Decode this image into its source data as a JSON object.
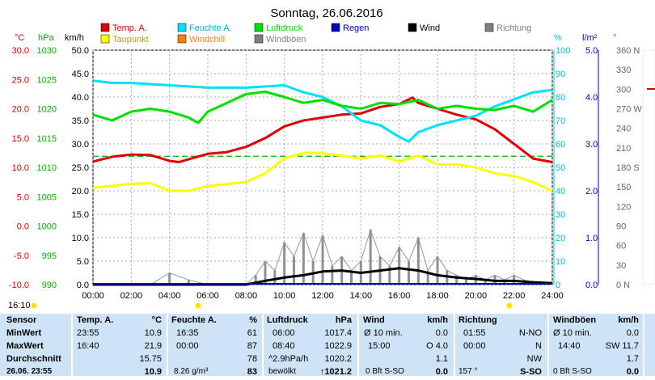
{
  "chart_data": {
    "type": "line",
    "title": "Sonntag, 26.06.2016",
    "legend": [
      {
        "label": "Temp. A.",
        "color": "#e00000"
      },
      {
        "label": "Feuchte A.",
        "color": "#00e0ff"
      },
      {
        "label": "Luftdruck",
        "color": "#00e000"
      },
      {
        "label": "Regen",
        "color": "#0000c0"
      },
      {
        "label": "Wind",
        "color": "#000000"
      },
      {
        "label": "Richtung",
        "color": "#808080"
      },
      {
        "label": "Taupunkt",
        "color": "#ffff00"
      },
      {
        "label": "Windchill",
        "color": "#ff8000"
      },
      {
        "label": "Windböen",
        "color": "#808080"
      }
    ],
    "axis_units": {
      "temp": "°C",
      "pressure": "hPa",
      "wind": "km/h",
      "humidity": "%",
      "rain": "l/m²",
      "direction": "°"
    },
    "axes": {
      "temp": {
        "ylim": [
          -10,
          30
        ],
        "ticks": [
          "30.0",
          "25.0",
          "20.0",
          "15.0",
          "10.0",
          "5.0",
          "0.0",
          "-5.0",
          "-10.0"
        ]
      },
      "pressure": {
        "ylim": [
          990,
          1030
        ],
        "ticks": [
          "1030",
          "1025",
          "1020",
          "1015",
          "1010",
          "1005",
          "1000",
          "995",
          "990"
        ]
      },
      "wind": {
        "ylim": [
          0,
          50
        ],
        "ticks": [
          "50.0",
          "45.0",
          "40.0",
          "35.0",
          "30.0",
          "25.0",
          "20.0",
          "15.0",
          "10.0",
          "5.0",
          "0.0"
        ]
      },
      "humidity": {
        "ylim": [
          0,
          100
        ],
        "ticks": [
          "100",
          "90",
          "80",
          "70",
          "60",
          "50",
          "40",
          "30",
          "20",
          "10",
          "0"
        ]
      },
      "rain": {
        "ylim": [
          0,
          5
        ],
        "ticks": [
          "5.0",
          "4.0",
          "3.0",
          "2.0",
          "1.0",
          "0.0"
        ]
      },
      "direction": {
        "ylim": [
          0,
          360
        ],
        "ticks": [
          "360 N",
          "330",
          "300",
          "270 W",
          "240",
          "210",
          "180 S",
          "150",
          "120",
          "90",
          "60",
          "30",
          "0 N"
        ]
      }
    },
    "x_ticks": [
      "00:00",
      "02:00",
      "04:00",
      "06:00",
      "08:00",
      "10:00",
      "12:00",
      "14:00",
      "16:00",
      "18:00",
      "20:00",
      "22:00",
      "24:00"
    ],
    "x_hours": [
      0,
      24
    ],
    "series": [
      {
        "name": "Temp. A.",
        "axis": "temp",
        "color": "#e00000",
        "width": 3,
        "x": [
          0,
          1,
          2,
          3,
          4,
          4.5,
          5,
          6,
          7,
          8,
          9,
          10,
          11,
          12,
          13,
          14,
          15,
          16,
          16.7,
          17,
          18,
          19,
          20,
          21,
          22,
          23,
          24
        ],
        "y": [
          11.0,
          11.8,
          12.2,
          12.1,
          11.1,
          10.9,
          11.4,
          12.3,
          12.6,
          13.5,
          15.0,
          17.0,
          18.0,
          18.5,
          19.0,
          19.2,
          20.3,
          20.8,
          21.9,
          21.0,
          20.0,
          19.0,
          18.2,
          16.5,
          14.0,
          11.5,
          10.9
        ]
      },
      {
        "name": "Feuchte A.",
        "axis": "humidity",
        "color": "#00e0ff",
        "width": 3,
        "x": [
          0,
          1,
          2,
          4,
          6,
          8,
          10,
          11,
          12,
          13,
          14,
          15,
          16,
          16.5,
          17,
          18,
          19,
          20,
          21,
          22,
          23,
          24
        ],
        "y": [
          87,
          86,
          86,
          85,
          84,
          84,
          85,
          82,
          80,
          76,
          70,
          68,
          63,
          61,
          65,
          68,
          70,
          72,
          76,
          79,
          82,
          83
        ]
      },
      {
        "name": "Luftdruck",
        "axis": "pressure",
        "color": "#00e000",
        "width": 3,
        "x": [
          0,
          1,
          2,
          3,
          4,
          5,
          5.5,
          6,
          7,
          8,
          9,
          10,
          11,
          12,
          13,
          14,
          15,
          16,
          17,
          18,
          19,
          20,
          21,
          22,
          23,
          24
        ],
        "y": [
          1019.0,
          1018.0,
          1019.5,
          1020.0,
          1019.5,
          1018.5,
          1017.6,
          1019.5,
          1021.0,
          1022.5,
          1022.9,
          1022.0,
          1021.0,
          1021.5,
          1020.5,
          1020.0,
          1021.0,
          1020.8,
          1021.5,
          1020.0,
          1020.5,
          1020.0,
          1019.8,
          1020.5,
          1019.5,
          1021.5
        ]
      },
      {
        "name": "Taupunkt",
        "axis": "temp",
        "color": "#ffff00",
        "width": 3,
        "x": [
          0,
          2,
          3,
          4,
          5,
          6,
          8,
          9,
          10,
          11,
          12,
          13,
          14,
          15,
          16,
          17,
          18,
          19,
          20,
          21,
          22,
          23,
          24
        ],
        "y": [
          6.5,
          7.2,
          7.3,
          6.0,
          6.0,
          6.8,
          7.5,
          9.0,
          11.5,
          12.5,
          12.4,
          12.0,
          11.5,
          12.0,
          11.0,
          12.0,
          10.5,
          10.5,
          10.0,
          9.0,
          8.5,
          7.5,
          6.0
        ]
      },
      {
        "name": "Windböen",
        "axis": "wind",
        "color": "#909090",
        "width": 2,
        "bars": true,
        "x": [
          0,
          3,
          4,
          5,
          6,
          7,
          8,
          8.5,
          9,
          9.5,
          10,
          10.5,
          11,
          11.5,
          12,
          12.5,
          13,
          13.5,
          14,
          14.5,
          15,
          15.5,
          16,
          16.5,
          17,
          17.5,
          18,
          18.5,
          19,
          19.5,
          20,
          20.5,
          21,
          21.5,
          22,
          22.5,
          23,
          23.5,
          24
        ],
        "y": [
          0,
          0,
          2.5,
          1.0,
          0,
          0,
          0,
          2.0,
          5.0,
          3.0,
          9.0,
          6.0,
          11.0,
          5.0,
          10.5,
          4.0,
          6.0,
          3.0,
          5.0,
          11.7,
          6.0,
          4.0,
          8.0,
          5.0,
          10.0,
          3.0,
          6.0,
          3.0,
          2.0,
          1.0,
          2.0,
          1.0,
          2.0,
          1.0,
          2.0,
          1.0,
          0.5,
          0.5,
          0
        ]
      },
      {
        "name": "Wind",
        "axis": "wind",
        "color": "#000000",
        "width": 3,
        "x": [
          0,
          8,
          9,
          10,
          11,
          12,
          13,
          14,
          15,
          16,
          17,
          18,
          19,
          20,
          21,
          22,
          23,
          24
        ],
        "y": [
          0,
          0,
          0.8,
          1.5,
          2.0,
          2.8,
          3.0,
          2.5,
          3.0,
          3.5,
          3.0,
          2.0,
          1.5,
          1.2,
          0.8,
          0.8,
          0.5,
          0.3
        ]
      }
    ],
    "threshold": {
      "axis": "temp",
      "value": 11.9,
      "color": "#00b000",
      "dashed": true
    },
    "stamp": "16:10"
  },
  "table": {
    "headers": [
      {
        "name": "Sensor"
      },
      {
        "name": "Temp. A.",
        "unit": "°C"
      },
      {
        "name": "Feuchte A.",
        "unit": "%"
      },
      {
        "name": "Luftdruck",
        "unit": "hPa"
      },
      {
        "name": "Wind",
        "unit": "km/h"
      },
      {
        "name": "Richtung",
        "unit": ""
      },
      {
        "name": "Windböen",
        "unit": "km/h"
      }
    ],
    "rows": [
      {
        "label": "MinWert",
        "temp": [
          "23:55",
          "10.9"
        ],
        "hum": [
          "16:35",
          "61"
        ],
        "press": [
          "06:00",
          "1017.4"
        ],
        "wind": [
          "Ø 10 min.",
          "0.0"
        ],
        "dir": [
          "01:55",
          "N-NO"
        ],
        "gust": [
          "Ø 10 min.",
          "0.0"
        ]
      },
      {
        "label": "MaxWert",
        "temp": [
          "16:40",
          "21.9"
        ],
        "hum": [
          "00:00",
          "87"
        ],
        "press": [
          "08:40",
          "1022.9"
        ],
        "wind": [
          "15:00",
          "O 4.0"
        ],
        "dir": [
          "00:00",
          "N"
        ],
        "gust": [
          "14:40",
          "SW 11.7"
        ]
      },
      {
        "label": "Durchschnitt",
        "temp": [
          "",
          "15.75"
        ],
        "hum": [
          "",
          "78"
        ],
        "press": [
          "^2.9hPa/h",
          "1020.2"
        ],
        "wind": [
          "",
          "1.1"
        ],
        "dir": [
          "",
          "NW"
        ],
        "gust": [
          "",
          "1.7"
        ]
      },
      {
        "label": "26.06. 23:55",
        "temp": [
          "",
          "10.9"
        ],
        "hum": [
          "8.26 g/m³",
          "83"
        ],
        "press": [
          "bewölkt",
          "↑1021.2"
        ],
        "wind": [
          "0 Bft S-SO",
          "0.0"
        ],
        "dir": [
          "157 °",
          "S-SO"
        ],
        "gust": [
          "0 Bft S-SO",
          "0.0"
        ]
      }
    ]
  }
}
